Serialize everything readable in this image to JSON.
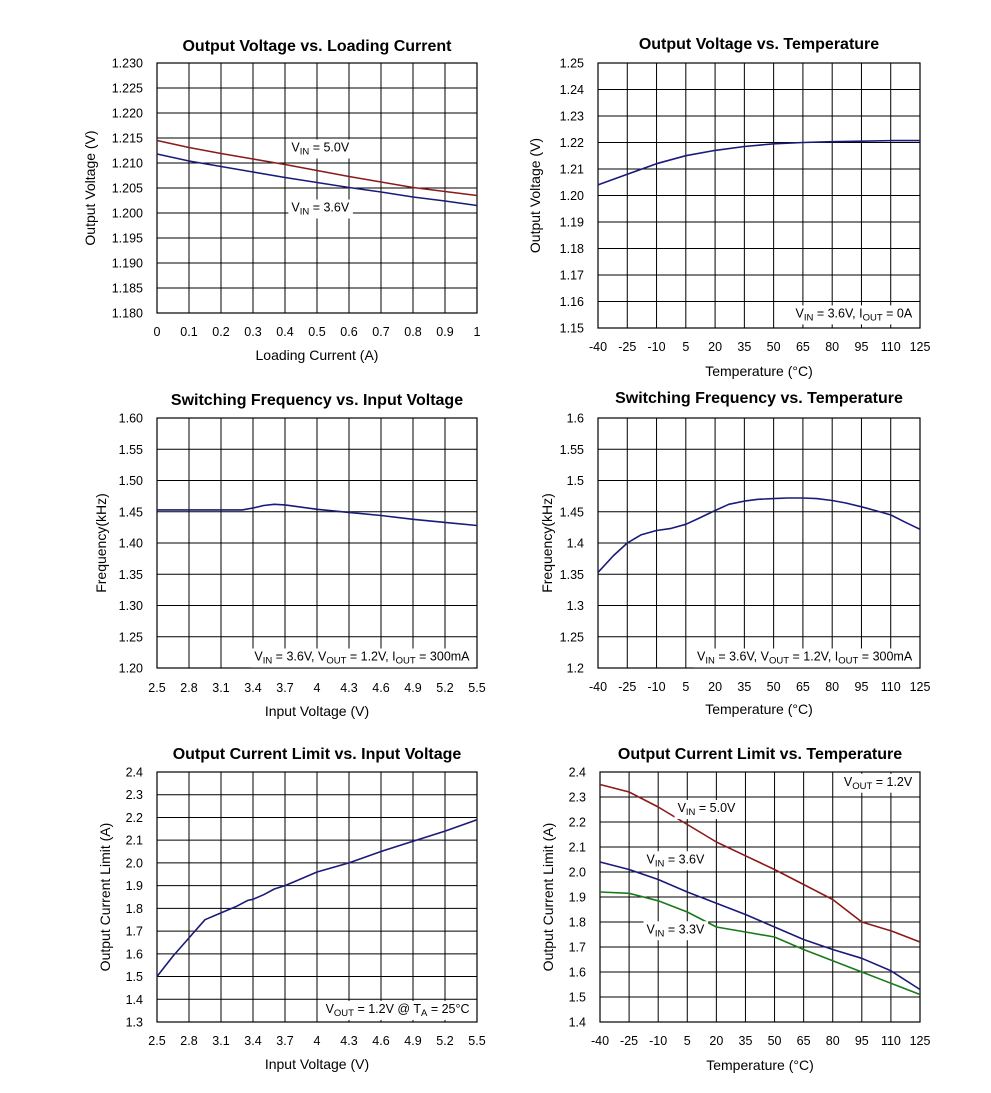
{
  "chart_data": [
    {
      "type": "line",
      "title": "Output Voltage vs. Loading Current",
      "xlabel": "Loading Current (A)",
      "ylabel": "Output Voltage (V)",
      "xlim": [
        0,
        1
      ],
      "ylim": [
        1.18,
        1.23
      ],
      "xticks": [
        "0",
        "0.1",
        "0.2",
        "0.3",
        "0.4",
        "0.5",
        "0.6",
        "0.7",
        "0.8",
        "0.9",
        "1"
      ],
      "yticks": [
        "1.180",
        "1.185",
        "1.190",
        "1.195",
        "1.200",
        "1.205",
        "1.210",
        "1.215",
        "1.220",
        "1.225",
        "1.230"
      ],
      "grid": true,
      "series": [
        {
          "name": "VIN = 5.0V",
          "color": "#8b1a1a",
          "x": [
            0,
            0.1,
            0.2,
            0.3,
            0.4,
            0.5,
            0.6,
            0.7,
            0.8,
            0.9,
            1.0
          ],
          "y": [
            1.2145,
            1.2131,
            1.2119,
            1.2108,
            1.2097,
            1.2085,
            1.2073,
            1.2062,
            1.2051,
            1.2043,
            1.2035
          ]
        },
        {
          "name": "VIN = 3.6V",
          "color": "#1a1a7a",
          "x": [
            0,
            0.1,
            0.2,
            0.3,
            0.4,
            0.5,
            0.6,
            0.7,
            0.8,
            0.9,
            1.0
          ],
          "y": [
            1.2118,
            1.2104,
            1.2093,
            1.2082,
            1.2071,
            1.2061,
            1.2051,
            1.2042,
            1.2032,
            1.2024,
            1.2015
          ]
        }
      ],
      "annotations": [
        {
          "sub": [
            [
              "V",
              ""
            ],
            [
              "IN",
              "sub"
            ],
            [
              " = 5.0V",
              ""
            ]
          ],
          "at": [
            0.42,
            1.2123
          ]
        },
        {
          "sub": [
            [
              "V",
              ""
            ],
            [
              "IN",
              "sub"
            ],
            [
              " = 3.6V",
              ""
            ]
          ],
          "at": [
            0.42,
            1.2003
          ]
        }
      ]
    },
    {
      "type": "line",
      "title": "Output Voltage vs. Temperature",
      "xlabel": "Temperature (°C)",
      "ylabel": "Output Voltage (V)",
      "xlim": [
        -40,
        125
      ],
      "ylim": [
        1.15,
        1.25
      ],
      "xticks": [
        "-40",
        "-25",
        "-10",
        "5",
        "20",
        "35",
        "50",
        "65",
        "80",
        "95",
        "110",
        "125"
      ],
      "yticks": [
        "1.15",
        "1.16",
        "1.17",
        "1.18",
        "1.19",
        "1.20",
        "1.21",
        "1.22",
        "1.23",
        "1.24",
        "1.25"
      ],
      "grid": true,
      "series": [
        {
          "name": "",
          "color": "#1a1a7a",
          "x": [
            -40,
            -25,
            -10,
            5,
            20,
            35,
            50,
            65,
            80,
            95,
            110,
            125
          ],
          "y": [
            1.204,
            1.208,
            1.212,
            1.215,
            1.217,
            1.2185,
            1.2195,
            1.22,
            1.2203,
            1.2205,
            1.2207,
            1.2207
          ]
        }
      ],
      "annotations": [
        {
          "sub": [
            [
              "V",
              ""
            ],
            [
              "IN",
              "sub"
            ],
            [
              " = 3.6V, I",
              ""
            ],
            [
              "OUT",
              "sub"
            ],
            [
              " = 0A",
              ""
            ]
          ],
          "at": [
            121,
            1.154
          ],
          "align": "end"
        }
      ]
    },
    {
      "type": "line",
      "title": "Switching Frequency vs. Input Voltage",
      "xlabel": "Input Voltage (V)",
      "ylabel": "Frequency(kHz)",
      "xlim": [
        2.5,
        5.5
      ],
      "ylim": [
        1.2,
        1.6
      ],
      "xticks": [
        "2.5",
        "2.8",
        "3.1",
        "3.4",
        "3.7",
        "4",
        "4.3",
        "4.6",
        "4.9",
        "5.2",
        "5.5"
      ],
      "yticks": [
        "1.20",
        "1.25",
        "1.30",
        "1.35",
        "1.40",
        "1.45",
        "1.50",
        "1.55",
        "1.60"
      ],
      "grid": true,
      "series": [
        {
          "name": "",
          "color": "#1a1a7a",
          "x": [
            2.5,
            2.8,
            3.1,
            3.3,
            3.4,
            3.5,
            3.6,
            3.7,
            4.0,
            4.3,
            4.6,
            4.9,
            5.2,
            5.5
          ],
          "y": [
            1.453,
            1.453,
            1.453,
            1.453,
            1.456,
            1.46,
            1.462,
            1.461,
            1.454,
            1.449,
            1.444,
            1.438,
            1.433,
            1.428
          ]
        }
      ],
      "annotations": [
        {
          "sub": [
            [
              "V",
              ""
            ],
            [
              "IN",
              "sub"
            ],
            [
              " = 3.6V, V",
              ""
            ],
            [
              "OUT",
              "sub"
            ],
            [
              " = 1.2V, I",
              ""
            ],
            [
              "OUT",
              "sub"
            ],
            [
              " = 300mA",
              ""
            ]
          ],
          "at": [
            5.43,
            1.212
          ],
          "align": "end"
        }
      ]
    },
    {
      "type": "line",
      "title": "Switching Frequency vs. Temperature",
      "xlabel": "Temperature (°C)",
      "ylabel": "Frequency(kHz)",
      "xlim": [
        -40,
        125
      ],
      "ylim": [
        1.2,
        1.6
      ],
      "xticks": [
        "-40",
        "-25",
        "-10",
        "5",
        "20",
        "35",
        "50",
        "65",
        "80",
        "95",
        "110",
        "125"
      ],
      "yticks": [
        "1.2",
        "1.25",
        "1.3",
        "1.35",
        "1.4",
        "1.45",
        "1.5",
        "1.55",
        "1.6"
      ],
      "grid": true,
      "series": [
        {
          "name": "",
          "color": "#1a1a7a",
          "x": [
            -40,
            -32,
            -25,
            -18,
            -10,
            -3,
            5,
            12,
            20,
            27,
            35,
            42,
            50,
            57,
            65,
            72,
            80,
            87,
            95,
            102,
            110,
            117,
            125
          ],
          "y": [
            1.353,
            1.38,
            1.4,
            1.413,
            1.42,
            1.423,
            1.43,
            1.44,
            1.452,
            1.462,
            1.467,
            1.47,
            1.471,
            1.472,
            1.472,
            1.471,
            1.468,
            1.464,
            1.458,
            1.452,
            1.445,
            1.434,
            1.422
          ]
        }
      ],
      "annotations": [
        {
          "sub": [
            [
              "V",
              ""
            ],
            [
              "IN",
              "sub"
            ],
            [
              " = 3.6V, V",
              ""
            ],
            [
              "OUT",
              "sub"
            ],
            [
              " = 1.2V, I",
              ""
            ],
            [
              "OUT",
              "sub"
            ],
            [
              " = 300mA",
              ""
            ]
          ],
          "at": [
            121,
            1.212
          ],
          "align": "end"
        }
      ]
    },
    {
      "type": "line",
      "title": "Output Current Limit vs. Input Voltage",
      "xlabel": "Input Voltage (V)",
      "ylabel": "Output Current Limit (A)",
      "xlim": [
        2.5,
        5.5
      ],
      "ylim": [
        1.3,
        2.4
      ],
      "xticks": [
        "2.5",
        "2.8",
        "3.1",
        "3.4",
        "3.7",
        "4",
        "4.3",
        "4.6",
        "4.9",
        "5.2",
        "5.5"
      ],
      "yticks": [
        "1.3",
        "1.4",
        "1.5",
        "1.6",
        "1.7",
        "1.8",
        "1.9",
        "2.0",
        "2.1",
        "2.2",
        "2.3",
        "2.4"
      ],
      "grid": true,
      "series": [
        {
          "name": "",
          "color": "#1a1a7a",
          "x": [
            2.5,
            2.65,
            2.8,
            2.95,
            3.1,
            3.25,
            3.35,
            3.4,
            3.5,
            3.6,
            3.7,
            3.8,
            4.0,
            4.3,
            4.6,
            4.9,
            5.2,
            5.5
          ],
          "y": [
            1.5,
            1.59,
            1.67,
            1.75,
            1.78,
            1.81,
            1.835,
            1.84,
            1.86,
            1.885,
            1.9,
            1.92,
            1.96,
            2.0,
            2.05,
            2.095,
            2.14,
            2.19
          ]
        }
      ],
      "annotations": [
        {
          "sub": [
            [
              "V",
              ""
            ],
            [
              "OUT",
              "sub"
            ],
            [
              " = 1.2V @ T",
              ""
            ],
            [
              "A",
              "sub"
            ],
            [
              " = 25°C",
              ""
            ]
          ],
          "at": [
            5.43,
            1.34
          ],
          "align": "end"
        }
      ]
    },
    {
      "type": "line",
      "title": "Output Current Limit vs. Temperature",
      "xlabel": "Temperature (°C)",
      "ylabel": "Output Current Limit (A)",
      "xlim": [
        -40,
        125
      ],
      "ylim": [
        1.4,
        2.4
      ],
      "xticks": [
        "-40",
        "-25",
        "-10",
        "5",
        "20",
        "35",
        "50",
        "65",
        "80",
        "95",
        "110",
        "125"
      ],
      "yticks": [
        "1.4",
        "1.5",
        "1.6",
        "1.7",
        "1.8",
        "1.9",
        "2.0",
        "2.1",
        "2.2",
        "2.3",
        "2.4"
      ],
      "grid": true,
      "series": [
        {
          "name": "VIN = 5.0V",
          "color": "#8b1a1a",
          "x": [
            -40,
            -25,
            -10,
            5,
            20,
            35,
            50,
            65,
            80,
            95,
            110,
            125
          ],
          "y": [
            2.35,
            2.32,
            2.26,
            2.19,
            2.12,
            2.065,
            2.01,
            1.95,
            1.89,
            1.8,
            1.765,
            1.72
          ]
        },
        {
          "name": "VIN = 3.6V",
          "color": "#1a1a7a",
          "x": [
            -40,
            -25,
            -10,
            5,
            20,
            35,
            50,
            65,
            80,
            95,
            110,
            125
          ],
          "y": [
            2.04,
            2.01,
            1.97,
            1.92,
            1.875,
            1.83,
            1.78,
            1.73,
            1.69,
            1.655,
            1.605,
            1.53
          ]
        },
        {
          "name": "VIN = 3.3V",
          "color": "#1a7a1a",
          "x": [
            -40,
            -25,
            -10,
            5,
            20,
            35,
            50,
            65,
            80,
            95,
            110,
            125
          ],
          "y": [
            1.92,
            1.915,
            1.885,
            1.84,
            1.78,
            1.76,
            1.74,
            1.69,
            1.645,
            1.6,
            1.555,
            1.51
          ]
        }
      ],
      "annotations": [
        {
          "sub": [
            [
              "V",
              ""
            ],
            [
              "OUT",
              "sub"
            ],
            [
              " = 1.2V",
              ""
            ]
          ],
          "at": [
            121,
            2.345
          ],
          "align": "end"
        },
        {
          "sub": [
            [
              "V",
              ""
            ],
            [
              "IN",
              "sub"
            ],
            [
              " = 5.0V",
              ""
            ]
          ],
          "at": [
            0,
            2.24
          ]
        },
        {
          "sub": [
            [
              "V",
              ""
            ],
            [
              "IN",
              "sub"
            ],
            [
              " = 3.6V",
              ""
            ]
          ],
          "at": [
            -16,
            2.035
          ]
        },
        {
          "sub": [
            [
              "V",
              ""
            ],
            [
              "IN",
              "sub"
            ],
            [
              " = 3.3V",
              ""
            ]
          ],
          "at": [
            -16,
            1.755
          ]
        }
      ]
    }
  ]
}
